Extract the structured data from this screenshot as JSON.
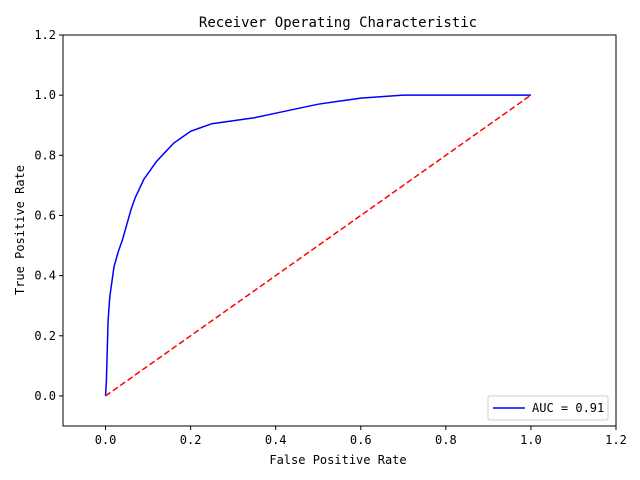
{
  "chart_data": {
    "type": "line",
    "title": "Receiver Operating Characteristic",
    "xlabel": "False Positive Rate",
    "ylabel": "True Positive Rate",
    "xlim": [
      -0.1,
      1.2
    ],
    "ylim": [
      -0.1,
      1.2
    ],
    "xticks": [
      0.0,
      0.2,
      0.4,
      0.6,
      0.8,
      1.0,
      1.2
    ],
    "yticks": [
      0.0,
      0.2,
      0.4,
      0.6,
      0.8,
      1.0,
      1.2
    ],
    "xtick_labels": [
      "0.0",
      "0.2",
      "0.4",
      "0.6",
      "0.8",
      "1.0",
      "1.2"
    ],
    "ytick_labels": [
      "0.0",
      "0.2",
      "0.4",
      "0.6",
      "0.8",
      "1.0",
      "1.2"
    ],
    "grid": false,
    "legend_position": "lower-right",
    "series": [
      {
        "name": "AUC = 0.91",
        "color": "#0000ff",
        "style": "solid",
        "x": [
          0.0,
          0.002,
          0.004,
          0.006,
          0.01,
          0.015,
          0.02,
          0.03,
          0.04,
          0.05,
          0.06,
          0.07,
          0.08,
          0.09,
          0.1,
          0.12,
          0.14,
          0.16,
          0.18,
          0.2,
          0.22,
          0.25,
          0.3,
          0.35,
          0.4,
          0.45,
          0.5,
          0.55,
          0.6,
          0.65,
          0.7,
          0.8,
          0.9,
          1.0
        ],
        "y": [
          0.0,
          0.05,
          0.15,
          0.25,
          0.33,
          0.38,
          0.43,
          0.48,
          0.52,
          0.57,
          0.62,
          0.66,
          0.69,
          0.72,
          0.74,
          0.78,
          0.81,
          0.84,
          0.86,
          0.88,
          0.89,
          0.905,
          0.915,
          0.925,
          0.94,
          0.955,
          0.97,
          0.98,
          0.99,
          0.995,
          1.0,
          1.0,
          1.0,
          1.0
        ]
      },
      {
        "color": "#ff0000",
        "style": "dashed",
        "x": [
          0.0,
          1.0
        ],
        "y": [
          0.0,
          1.0
        ]
      }
    ]
  }
}
